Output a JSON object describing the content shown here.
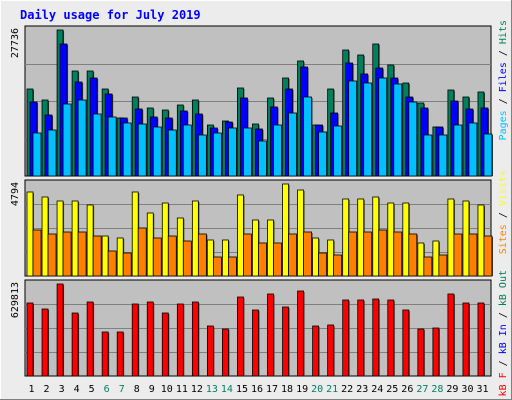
{
  "chart_data": {
    "type": "bar",
    "title": "Daily usage for July 2019",
    "colors": {
      "background": "#ececec",
      "plot_background": "#c0c0c0",
      "title": "#0000ff",
      "hits": "#00805c",
      "files": "#0000ff",
      "pages": "#00c0ff",
      "visits": "#ffff00",
      "sites": "#ff8000",
      "kbytes": "#ff0000",
      "weekend_label": "#00805c"
    },
    "days": [
      "1",
      "2",
      "3",
      "4",
      "5",
      "6",
      "7",
      "8",
      "9",
      "10",
      "11",
      "12",
      "13",
      "14",
      "15",
      "16",
      "17",
      "18",
      "19",
      "20",
      "21",
      "22",
      "23",
      "24",
      "25",
      "26",
      "27",
      "28",
      "29",
      "30",
      "31"
    ],
    "weekend_days": [
      "6",
      "7",
      "13",
      "14",
      "20",
      "21",
      "27",
      "28"
    ],
    "panels": [
      {
        "id": "usage",
        "max_label": "27736",
        "ymax": 27736,
        "legend": [
          {
            "text": "Pages",
            "color": "#00c0ff"
          },
          {
            "text": " / ",
            "color": "#000000"
          },
          {
            "text": "Files",
            "color": "#0000ff"
          },
          {
            "text": " / ",
            "color": "#000000"
          },
          {
            "text": "Hits",
            "color": "#00805c"
          }
        ],
        "series": [
          {
            "name": "Hits",
            "color": "#00805c",
            "values": [
              16600,
              14500,
              27736,
              20000,
              20000,
              16500,
              11000,
              15000,
              13000,
              12500,
              13500,
              14500,
              9600,
              10500,
              16800,
              9900,
              14800,
              18700,
              21800,
              9600,
              16500,
              24000,
              23000,
              25000,
              21000,
              17700,
              13800,
              9400,
              16300,
              15000,
              16000
            ]
          },
          {
            "name": "Files",
            "color": "#0000ff",
            "values": [
              14000,
              11500,
              25000,
              17800,
              18700,
              15500,
              11000,
              12800,
              11300,
              11000,
              12300,
              11800,
              9200,
              10200,
              14800,
              8900,
              13200,
              16500,
              20700,
              9600,
              12000,
              21500,
              19300,
              20600,
              18600,
              15000,
              13000,
              9300,
              14200,
              12800,
              13000
            ]
          },
          {
            "name": "Pages",
            "color": "#00c0ff",
            "values": [
              8200,
              8800,
              13600,
              14500,
              11800,
              11300,
              10000,
              9800,
              9400,
              8800,
              9600,
              7800,
              8200,
              9200,
              9200,
              6600,
              9700,
              12000,
              15000,
              8300,
              9500,
              18000,
              17600,
              18600,
              17500,
              14000,
              7800,
              7700,
              9700,
              10000,
              8000
            ]
          }
        ]
      },
      {
        "id": "visits",
        "max_label": "4794",
        "ymax": 4794,
        "legend": [
          {
            "text": "Sites",
            "color": "#ff8000"
          },
          {
            "text": " / ",
            "color": "#000000"
          },
          {
            "text": "Visits",
            "color": "#ffff00"
          }
        ],
        "series": [
          {
            "name": "Visits",
            "color": "#ffff00",
            "values": [
              4400,
              4100,
              3900,
              3900,
              3700,
              2100,
              2000,
              4400,
              3300,
              3800,
              3000,
              3900,
              1900,
              1900,
              4200,
              2900,
              2900,
              4794,
              4500,
              2000,
              1900,
              4000,
              4000,
              4100,
              3800,
              3800,
              1700,
              1800,
              4000,
              3900,
              3700
            ]
          },
          {
            "name": "Sites",
            "color": "#ff8000",
            "values": [
              2400,
              2200,
              2300,
              2300,
              2100,
              1300,
              1200,
              2500,
              2000,
              2100,
              1800,
              2200,
              1000,
              1000,
              2200,
              1700,
              1700,
              2200,
              2300,
              1200,
              1100,
              2300,
              2300,
              2400,
              2300,
              2200,
              1000,
              1100,
              2200,
              2200,
              2100
            ]
          }
        ]
      },
      {
        "id": "kbytes",
        "max_label": "629813",
        "ymax": 629813,
        "legend": [
          {
            "text": "kB F",
            "color": "#ff0000"
          },
          {
            "text": " / ",
            "color": "#000000"
          },
          {
            "text": "kB In",
            "color": "#0000ff"
          },
          {
            "text": " / ",
            "color": "#000000"
          },
          {
            "text": "kB Out",
            "color": "#00805c"
          }
        ],
        "series": [
          {
            "name": "kB F",
            "color": "#ff0000",
            "values": [
              500000,
              460000,
              629813,
              430000,
              510000,
              300000,
              300000,
              490000,
              510000,
              430000,
              490000,
              510000,
              340000,
              320000,
              540000,
              450000,
              560000,
              470000,
              580000,
              340000,
              350000,
              520000,
              520000,
              530000,
              520000,
              450000,
              320000,
              330000,
              560000,
              500000,
              500000
            ]
          }
        ]
      }
    ]
  }
}
